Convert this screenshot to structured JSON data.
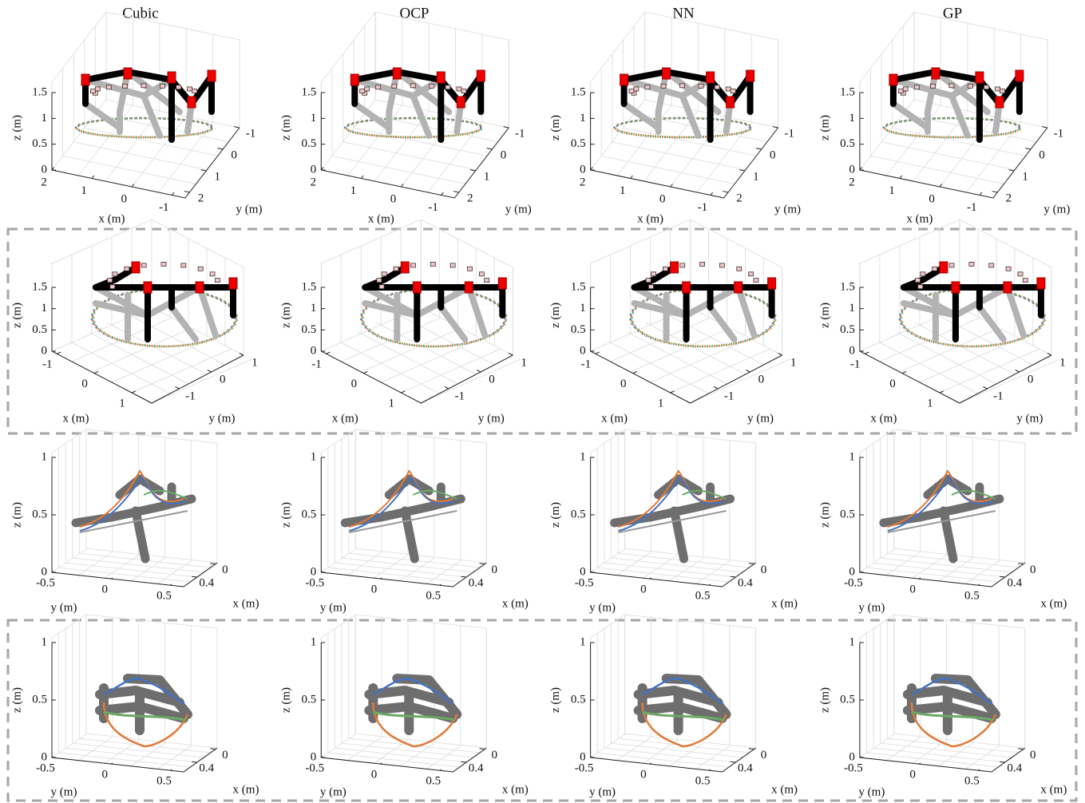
{
  "columns": [
    "Cubic",
    "OCP",
    "NN",
    "GP"
  ],
  "rows": [
    {
      "zticks": [
        "0",
        "0.5",
        "1",
        "1.5"
      ],
      "front_ticks": [
        "2",
        "1",
        "0",
        "-1"
      ],
      "side_ticks": [
        "2",
        "1",
        "0",
        "-1"
      ],
      "front_label": "x (m)",
      "side_label": "y (m)",
      "zlabel": "z (m)"
    },
    {
      "zticks": [
        "0",
        "0.5",
        "1",
        "1.5"
      ],
      "front_ticks": [
        "-1",
        "0",
        "1"
      ],
      "side_ticks": [
        "-1",
        "0",
        "1"
      ],
      "front_label": "x (m)",
      "side_label": "y (m)",
      "zlabel": "z (m)"
    },
    {
      "zticks": [
        "0",
        "0.5",
        "1"
      ],
      "front_ticks": [
        "-0.5",
        "0",
        "0.5"
      ],
      "side_ticks": [
        "0.4",
        "0"
      ],
      "front_label": "y (m)",
      "side_label": "x (m)",
      "zlabel": "z (m)"
    },
    {
      "zticks": [
        "0",
        "0.5",
        "1"
      ],
      "front_ticks": [
        "-0.5",
        "0",
        "0.5"
      ],
      "side_ticks": [
        "0.4",
        "0"
      ],
      "front_label": "y (m)",
      "side_label": "x (m)",
      "zlabel": "z (m)"
    }
  ]
}
